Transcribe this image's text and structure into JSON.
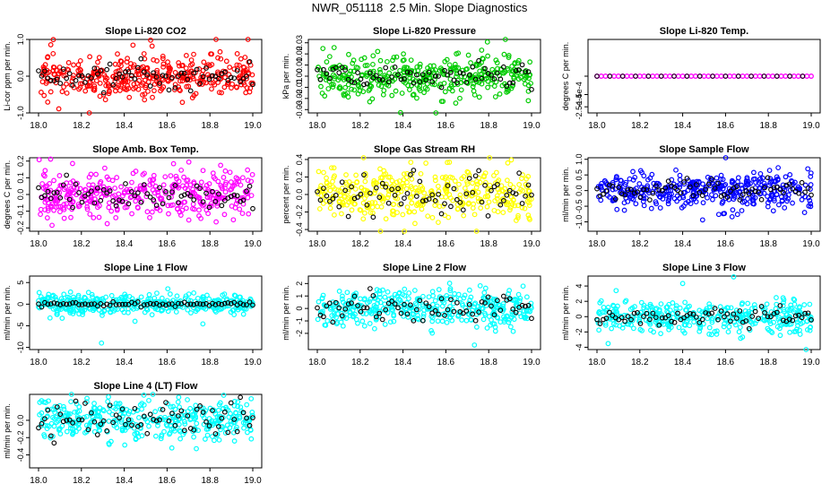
{
  "page": {
    "title": "NWR_051118  2.5 Min. Slope Diagnostics"
  },
  "chart_data": [
    {
      "type": "scatter",
      "title": "Slope Li-820 CO2",
      "ylabel": "Li-cor ppm per min.",
      "xlim": [
        18.0,
        19.0
      ],
      "ylim": [
        -1.0,
        1.0
      ],
      "xticks": [
        "18.0",
        "18.2",
        "18.4",
        "18.6",
        "18.8",
        "19.0"
      ],
      "yticks": [
        {
          "v": -1.0,
          "label": "-1.0"
        },
        {
          "v": 0.0,
          "label": "0.0"
        },
        {
          "v": 1.0,
          "label": "1.0"
        }
      ],
      "color": "#ff0000",
      "spread": 0.28,
      "black_spread": 0.18,
      "seed": 11
    },
    {
      "type": "scatter",
      "title": "Slope Li-820 Pressure",
      "ylabel": "kPa per min.",
      "xlim": [
        18.0,
        19.0
      ],
      "ylim": [
        -0.033,
        0.033
      ],
      "xticks": [
        "18.0",
        "18.2",
        "18.4",
        "18.6",
        "18.8",
        "19.0"
      ],
      "yticks": [
        {
          "v": -0.03,
          "label": "-0.03"
        },
        {
          "v": -0.02,
          "label": "-0.02"
        },
        {
          "v": -0.01,
          "label": "-0.01"
        },
        {
          "v": 0.0,
          "label": "0.00"
        },
        {
          "v": 0.01,
          "label": "0.01"
        },
        {
          "v": 0.02,
          "label": "0.02"
        },
        {
          "v": 0.03,
          "label": "0.03"
        }
      ],
      "color": "#00cc00",
      "spread": 0.009,
      "black_spread": 0.006,
      "seed": 23
    },
    {
      "type": "scatter",
      "title": "Slope Li-820 Temp.",
      "ylabel": "degrees C per min.",
      "xlim": [
        18.0,
        19.0
      ],
      "ylim": [
        -0.0003,
        0.0003
      ],
      "xticks": [
        "18.0",
        "18.2",
        "18.4",
        "18.6",
        "18.8",
        "19.0"
      ],
      "yticks": [
        {
          "v": -0.00025,
          "label": "-2.5e-4"
        },
        {
          "v": -0.00015,
          "label": "-1.5e-4"
        },
        {
          "v": 0.0,
          "label": ""
        }
      ],
      "color": "#ff00ff",
      "spread": 0.0,
      "black_spread": 0.0,
      "seed": 5
    },
    {
      "type": "scatter",
      "title": "Slope Amb. Box Temp.",
      "ylabel": "degrees C per min.",
      "xlim": [
        18.0,
        19.0
      ],
      "ylim": [
        -0.22,
        0.22
      ],
      "xticks": [
        "18.0",
        "18.2",
        "18.4",
        "18.6",
        "18.8",
        "19.0"
      ],
      "yticks": [
        {
          "v": -0.2,
          "label": "-0.2"
        },
        {
          "v": -0.1,
          "label": "-0.1"
        },
        {
          "v": 0.0,
          "label": "0.0"
        },
        {
          "v": 0.1,
          "label": "0.1"
        },
        {
          "v": 0.2,
          "label": "0.2"
        }
      ],
      "color": "#ff00ff",
      "spread": 0.07,
      "black_spread": 0.05,
      "seed": 37
    },
    {
      "type": "scatter",
      "title": "Slope Gas Stream RH",
      "ylabel": "percent per min.",
      "xlim": [
        18.0,
        19.0
      ],
      "ylim": [
        -0.42,
        0.42
      ],
      "xticks": [
        "18.0",
        "18.2",
        "18.4",
        "18.6",
        "18.8",
        "19.0"
      ],
      "yticks": [
        {
          "v": -0.4,
          "label": "-0.4"
        },
        {
          "v": -0.2,
          "label": "-0.2"
        },
        {
          "v": 0.0,
          "label": "0.0"
        },
        {
          "v": 0.2,
          "label": "0.2"
        },
        {
          "v": 0.4,
          "label": "0.4"
        }
      ],
      "color": "#ffff00",
      "spread": 0.14,
      "black_spread": 0.12,
      "seed": 41
    },
    {
      "type": "scatter",
      "title": "Slope Sample Flow",
      "ylabel": "ml/min per min.",
      "xlim": [
        18.0,
        19.0
      ],
      "ylim": [
        -1.3,
        1.05
      ],
      "xticks": [
        "18.0",
        "18.2",
        "18.4",
        "18.6",
        "18.8",
        "19.0"
      ],
      "yticks": [
        {
          "v": -1.0,
          "label": "-1.0"
        },
        {
          "v": -0.5,
          "label": "-0.5"
        },
        {
          "v": 0.0,
          "label": "0.0"
        },
        {
          "v": 0.5,
          "label": "0.5"
        },
        {
          "v": 1.0,
          "label": "1.0"
        }
      ],
      "color": "#0000ff",
      "spread": 0.3,
      "black_spread": 0.15,
      "seed": 53
    },
    {
      "type": "scatter",
      "title": "Slope Line 1 Flow",
      "ylabel": "ml/min per min.",
      "xlim": [
        18.0,
        19.0
      ],
      "ylim": [
        -10.5,
        6.5
      ],
      "xticks": [
        "18.0",
        "18.2",
        "18.4",
        "18.6",
        "18.8",
        "19.0"
      ],
      "yticks": [
        {
          "v": -10,
          "label": "-10"
        },
        {
          "v": -5,
          "label": "-5"
        },
        {
          "v": 0,
          "label": "0"
        },
        {
          "v": 5,
          "label": "5"
        }
      ],
      "color": "#00ffff",
      "spread": 1.0,
      "black_spread": 0.25,
      "seed": 67
    },
    {
      "type": "scatter",
      "title": "Slope Line 2 Flow",
      "ylabel": "ml/min per min.",
      "xlim": [
        18.0,
        19.0
      ],
      "ylim": [
        -3.3,
        2.6
      ],
      "xticks": [
        "18.0",
        "18.2",
        "18.4",
        "18.6",
        "18.8",
        "19.0"
      ],
      "yticks": [
        {
          "v": -2,
          "label": "-2"
        },
        {
          "v": -1,
          "label": "-1"
        },
        {
          "v": 0,
          "label": "0"
        },
        {
          "v": 1,
          "label": "1"
        },
        {
          "v": 2,
          "label": "2"
        }
      ],
      "color": "#00ffff",
      "spread": 0.75,
      "black_spread": 0.65,
      "seed": 79
    },
    {
      "type": "scatter",
      "title": "Slope Line 3 Flow",
      "ylabel": "ml/min per min.",
      "xlim": [
        18.0,
        19.0
      ],
      "ylim": [
        -4.3,
        5.3
      ],
      "xticks": [
        "18.0",
        "18.2",
        "18.4",
        "18.6",
        "18.8",
        "19.0"
      ],
      "yticks": [
        {
          "v": -4,
          "label": "-4"
        },
        {
          "v": -2,
          "label": "-2"
        },
        {
          "v": 0,
          "label": "0"
        },
        {
          "v": 2,
          "label": "2"
        },
        {
          "v": 4,
          "label": "4"
        }
      ],
      "color": "#00ffff",
      "spread": 1.1,
      "black_spread": 0.6,
      "seed": 97
    },
    {
      "type": "scatter",
      "title": "Slope Line 4 (LT) Flow",
      "ylabel": "ml/min per min.",
      "xlim": [
        18.0,
        19.0
      ],
      "ylim": [
        -0.55,
        0.3
      ],
      "xticks": [
        "18.0",
        "18.2",
        "18.4",
        "18.6",
        "18.8",
        "19.0"
      ],
      "yticks": [
        {
          "v": -0.4,
          "label": "-0.4"
        },
        {
          "v": -0.2,
          "label": "-0.2"
        },
        {
          "v": 0.0,
          "label": "0.0"
        }
      ],
      "color": "#00ffff",
      "spread": 0.12,
      "black_spread": 0.09,
      "seed": 113
    }
  ]
}
